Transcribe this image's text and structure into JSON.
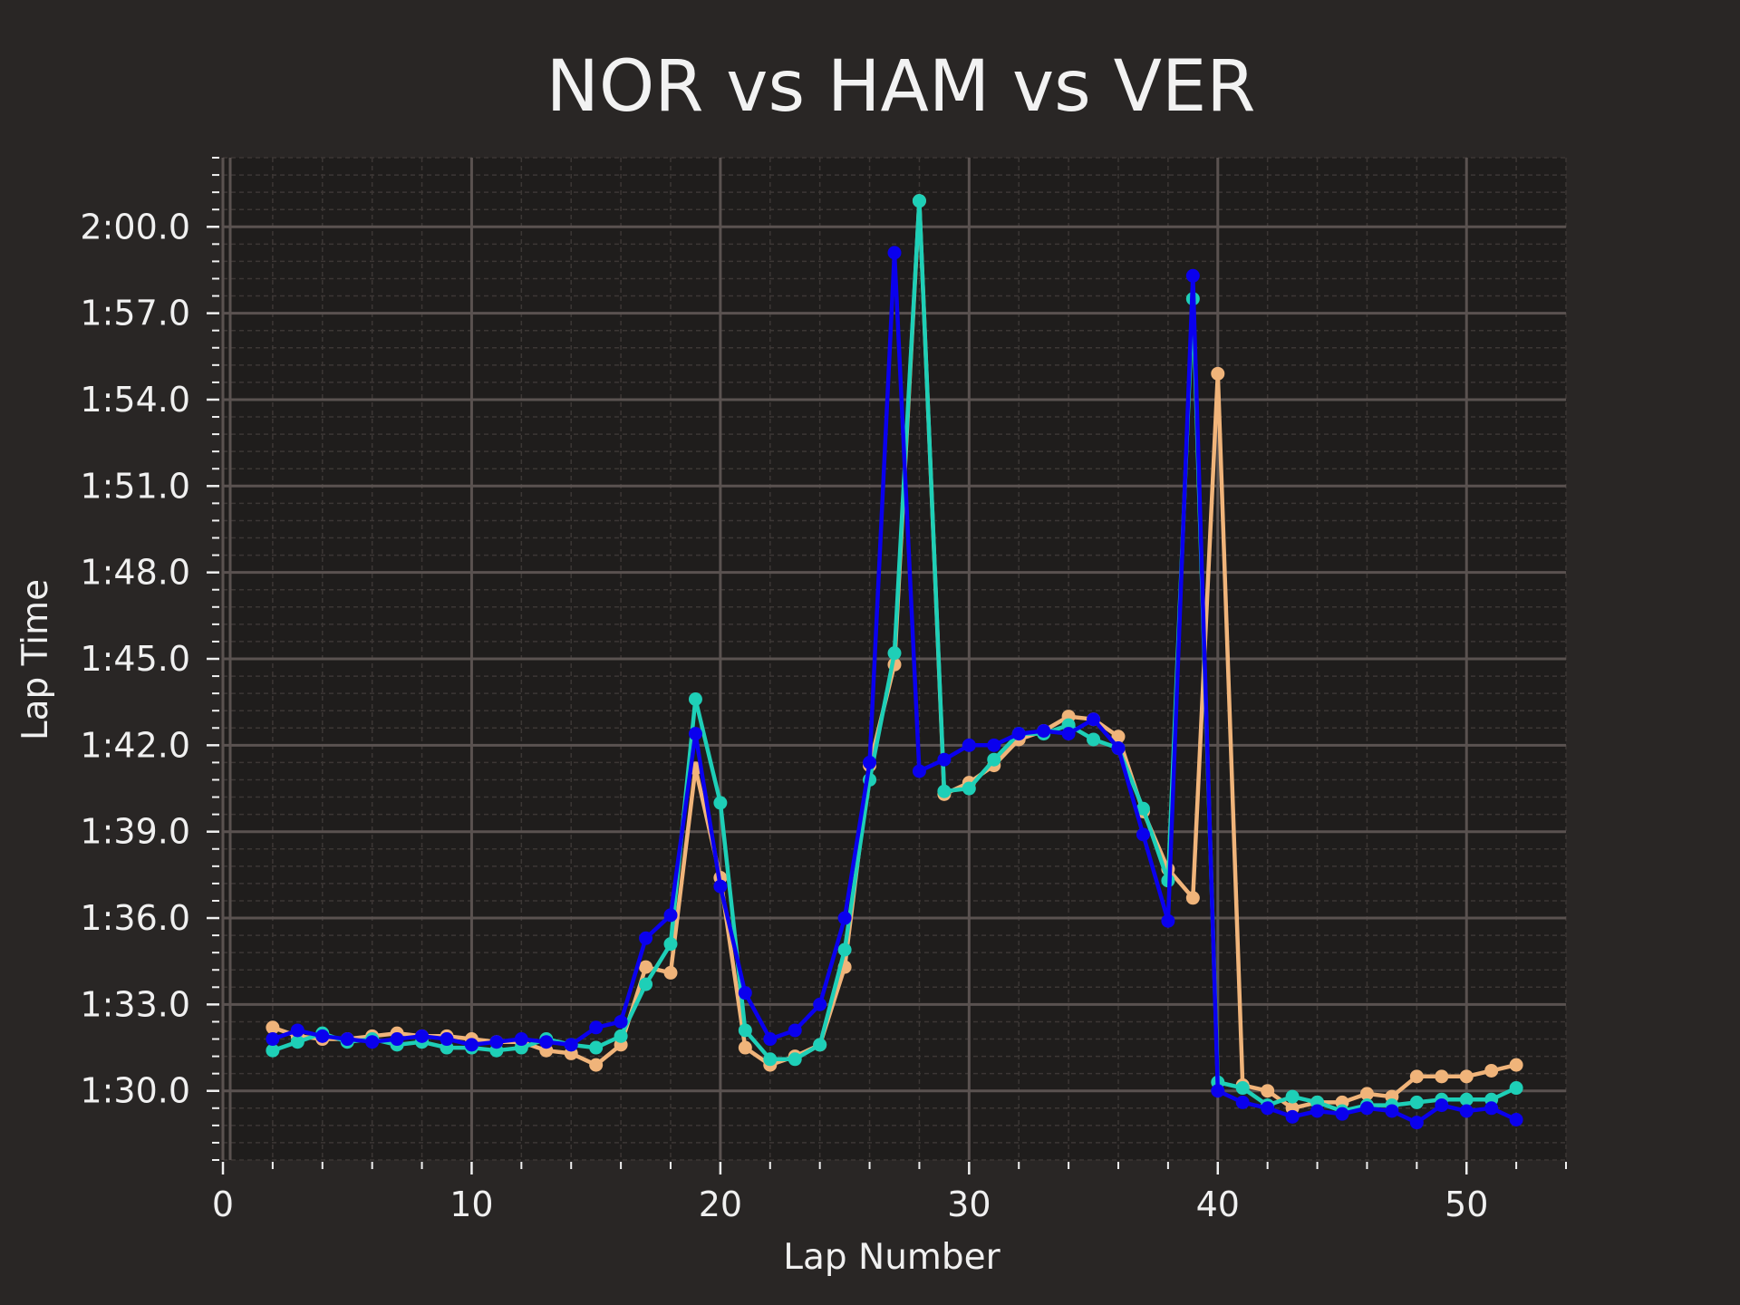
{
  "colors": {
    "figure_bg": "#292625",
    "plot_bg": "#1f1d1c",
    "major_grid": "#5a5250",
    "minor_grid": "#3c3735",
    "text": "#f0f0f0"
  },
  "chart_data": {
    "type": "line",
    "title": "NOR vs HAM vs VER",
    "xlabel": "Lap Number",
    "ylabel": "Lap Time",
    "xlim": [
      0,
      54
    ],
    "ylim_seconds": [
      87.6,
      122.4
    ],
    "x_ticks": [
      0,
      10,
      20,
      30,
      40,
      50
    ],
    "y_ticks": [
      {
        "value": 90,
        "label": "1:30.0"
      },
      {
        "value": 93,
        "label": "1:33.0"
      },
      {
        "value": 96,
        "label": "1:36.0"
      },
      {
        "value": 99,
        "label": "1:39.0"
      },
      {
        "value": 102,
        "label": "1:42.0"
      },
      {
        "value": 105,
        "label": "1:45.0"
      },
      {
        "value": 108,
        "label": "1:48.0"
      },
      {
        "value": 111,
        "label": "1:51.0"
      },
      {
        "value": 114,
        "label": "1:54.0"
      },
      {
        "value": 117,
        "label": "1:57.0"
      },
      {
        "value": 120,
        "label": "2:00.0"
      }
    ],
    "grid": true,
    "legend": false,
    "x": [
      2,
      3,
      4,
      5,
      6,
      7,
      8,
      9,
      10,
      11,
      12,
      13,
      14,
      15,
      16,
      17,
      18,
      19,
      20,
      21,
      22,
      23,
      24,
      25,
      26,
      27,
      28,
      29,
      30,
      31,
      32,
      33,
      34,
      35,
      36,
      37,
      38,
      39,
      40,
      41,
      42,
      43,
      44,
      45,
      46,
      47,
      48,
      49,
      50,
      51,
      52
    ],
    "series": [
      {
        "color": "#f0b47a",
        "values": [
          92.2,
          91.9,
          91.8,
          91.8,
          91.9,
          92.0,
          91.9,
          91.9,
          91.8,
          91.7,
          91.7,
          91.4,
          91.3,
          90.9,
          91.6,
          94.3,
          94.1,
          101.2,
          97.4,
          91.5,
          90.9,
          91.2,
          91.6,
          94.3,
          101.3,
          104.8,
          120.9,
          100.3,
          100.7,
          101.3,
          102.2,
          102.5,
          103.0,
          102.9,
          102.3,
          99.7,
          97.7,
          96.7,
          114.9,
          90.2,
          90.0,
          89.4,
          89.6,
          89.6,
          89.9,
          89.8,
          90.5,
          90.5,
          90.5,
          90.7,
          90.9
        ]
      },
      {
        "color": "#1ecfb7",
        "values": [
          91.4,
          91.7,
          92.0,
          91.7,
          91.8,
          91.6,
          91.7,
          91.5,
          91.5,
          91.4,
          91.5,
          91.8,
          91.6,
          91.5,
          91.9,
          93.7,
          95.1,
          103.6,
          100.0,
          92.1,
          91.1,
          91.1,
          91.6,
          94.9,
          100.8,
          105.2,
          120.9,
          100.4,
          100.5,
          101.5,
          102.4,
          102.4,
          102.7,
          102.2,
          101.9,
          99.8,
          97.3,
          117.5,
          90.3,
          90.1,
          89.5,
          89.8,
          89.6,
          89.3,
          89.5,
          89.5,
          89.6,
          89.7,
          89.7,
          89.7,
          90.1
        ]
      },
      {
        "color": "#0a00ee",
        "values": [
          91.8,
          92.1,
          91.9,
          91.8,
          91.7,
          91.8,
          91.9,
          91.8,
          91.6,
          91.7,
          91.8,
          91.7,
          91.6,
          92.2,
          92.4,
          95.3,
          96.1,
          102.4,
          97.1,
          93.4,
          91.8,
          92.1,
          93.0,
          96.0,
          101.4,
          119.1,
          101.1,
          101.5,
          102.0,
          102.0,
          102.4,
          102.5,
          102.4,
          102.9,
          101.9,
          98.9,
          95.9,
          118.3,
          90.0,
          89.6,
          89.4,
          89.1,
          89.3,
          89.2,
          89.4,
          89.3,
          88.9,
          89.5,
          89.3,
          89.4,
          89.0
        ]
      }
    ]
  }
}
